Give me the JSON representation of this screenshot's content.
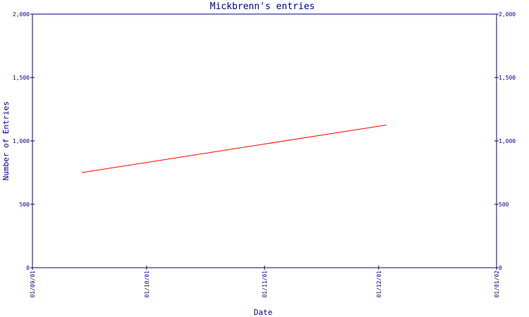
{
  "chart_data": {
    "type": "line",
    "title": "Mickbrenn's entries",
    "xlabel": "Date",
    "ylabel": "Number of Entries",
    "x_ticks": [
      "01/09/01",
      "01/10/01",
      "01/11/01",
      "01/12/01",
      "01/01/02"
    ],
    "y_ticks": [
      "0",
      "500",
      "1,000",
      "1,500",
      "2,000"
    ],
    "ylim": [
      0,
      2000
    ],
    "xlim": [
      "2001-09-01",
      "2002-01-01"
    ],
    "grid": false,
    "right_axis": true,
    "series": [
      {
        "color": "#ff0000",
        "x": [
          "2001-09-14",
          "2001-12-03"
        ],
        "y": [
          750,
          1125
        ]
      }
    ]
  },
  "colors": {
    "axis": "#000080",
    "text": "#000080",
    "background": "#ffffff"
  }
}
